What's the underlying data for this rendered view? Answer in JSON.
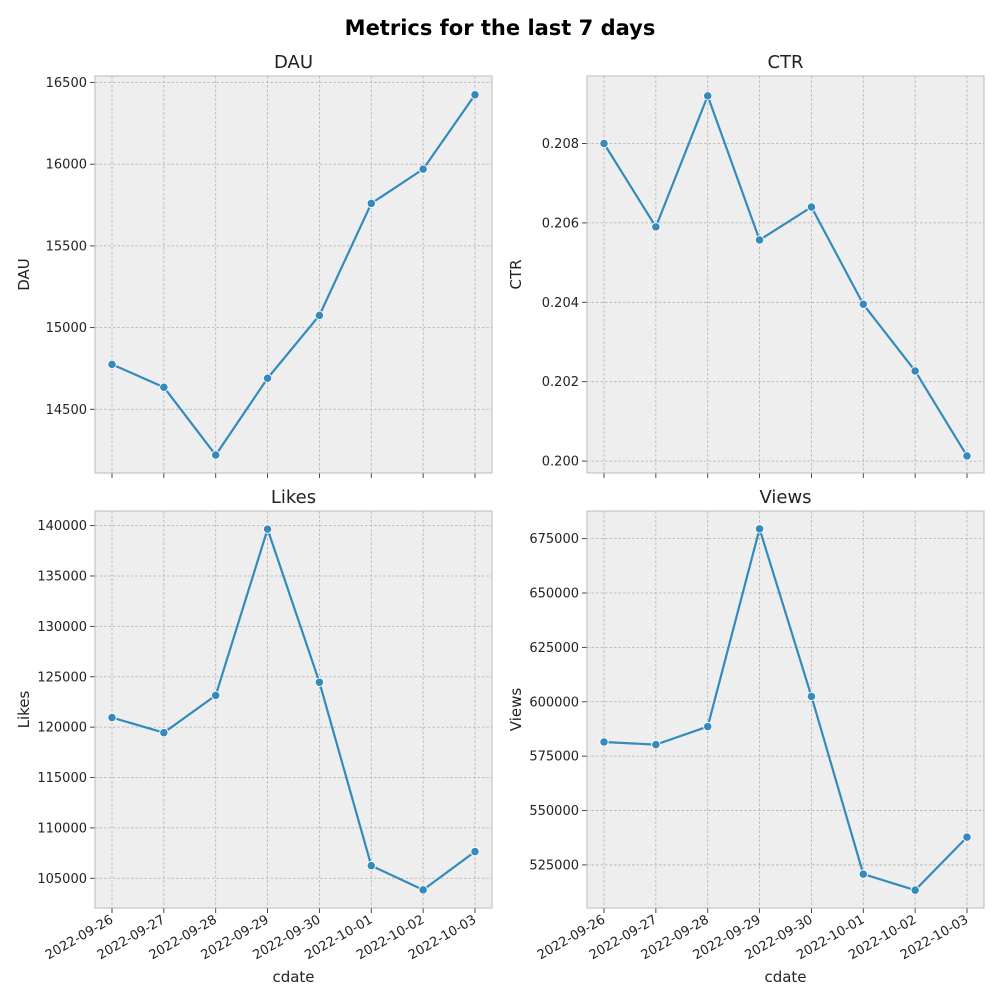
{
  "figure": {
    "title": "Metrics for the last 7 days"
  },
  "colors": {
    "line": "#348abd",
    "plot_background": "#eeeeee",
    "grid": "#b0b0b0",
    "axes_edge": "#bcbcbc",
    "marker_edge": "#ffffff"
  },
  "chart_data": [
    {
      "type": "line",
      "title": "DAU",
      "xlabel": "",
      "ylabel": "DAU",
      "x": [
        "2022-09-26",
        "2022-09-27",
        "2022-09-28",
        "2022-09-29",
        "2022-09-30",
        "2022-10-01",
        "2022-10-02",
        "2022-10-03"
      ],
      "values": [
        14775,
        14635,
        14220,
        14690,
        15075,
        15760,
        15970,
        16425
      ],
      "ylim": [
        14110,
        16540
      ],
      "yticks": [
        14500,
        15000,
        15500,
        16000,
        16500
      ],
      "ytick_labels": [
        "14500",
        "15000",
        "15500",
        "16000",
        "16500"
      ],
      "show_xtick_labels": false,
      "grid": true,
      "marker": "circle"
    },
    {
      "type": "line",
      "title": "CTR",
      "xlabel": "",
      "ylabel": "CTR",
      "x": [
        "2022-09-26",
        "2022-09-27",
        "2022-09-28",
        "2022-09-29",
        "2022-09-30",
        "2022-10-01",
        "2022-10-02",
        "2022-10-03"
      ],
      "values": [
        0.208,
        0.2059,
        0.2092,
        0.20557,
        0.2064,
        0.20395,
        0.20227,
        0.20013
      ],
      "ylim": [
        0.1997,
        0.2097
      ],
      "yticks": [
        0.2,
        0.202,
        0.204,
        0.206,
        0.208
      ],
      "ytick_labels": [
        "0.200",
        "0.202",
        "0.204",
        "0.206",
        "0.208"
      ],
      "show_xtick_labels": false,
      "grid": true,
      "marker": "circle"
    },
    {
      "type": "line",
      "title": "Likes",
      "xlabel": "cdate",
      "ylabel": "Likes",
      "x": [
        "2022-09-26",
        "2022-09-27",
        "2022-09-28",
        "2022-09-29",
        "2022-09-30",
        "2022-10-01",
        "2022-10-02",
        "2022-10-03"
      ],
      "values": [
        120950,
        119450,
        123150,
        139650,
        124450,
        106250,
        103850,
        107650
      ],
      "ylim": [
        102050,
        141450
      ],
      "yticks": [
        105000,
        110000,
        115000,
        120000,
        125000,
        130000,
        135000,
        140000
      ],
      "ytick_labels": [
        "105000",
        "110000",
        "115000",
        "120000",
        "125000",
        "130000",
        "135000",
        "140000"
      ],
      "xtick_labels": [
        "2022-09-26",
        "2022-09-27",
        "2022-09-28",
        "2022-09-29",
        "2022-09-30",
        "2022-10-01",
        "2022-10-02",
        "2022-10-03"
      ],
      "show_xtick_labels": true,
      "grid": true,
      "marker": "circle"
    },
    {
      "type": "line",
      "title": "Views",
      "xlabel": "cdate",
      "ylabel": "Views",
      "x": [
        "2022-09-26",
        "2022-09-27",
        "2022-09-28",
        "2022-09-29",
        "2022-09-30",
        "2022-10-01",
        "2022-10-02",
        "2022-10-03"
      ],
      "values": [
        581500,
        580300,
        588600,
        679500,
        602500,
        520800,
        513400,
        537800
      ],
      "ylim": [
        505200,
        687700
      ],
      "yticks": [
        525000,
        550000,
        575000,
        600000,
        625000,
        650000,
        675000
      ],
      "ytick_labels": [
        "525000",
        "550000",
        "575000",
        "600000",
        "625000",
        "650000",
        "675000"
      ],
      "xtick_labels": [
        "2022-09-26",
        "2022-09-27",
        "2022-09-28",
        "2022-09-29",
        "2022-09-30",
        "2022-10-01",
        "2022-10-02",
        "2022-10-03"
      ],
      "show_xtick_labels": true,
      "grid": true,
      "marker": "circle"
    }
  ]
}
